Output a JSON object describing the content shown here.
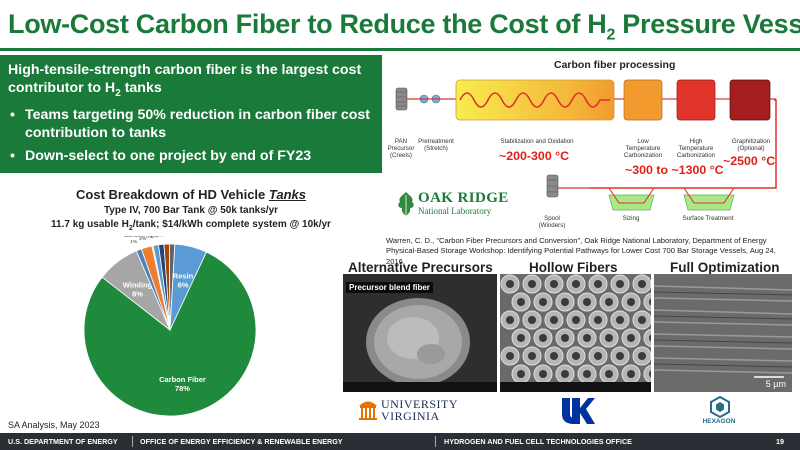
{
  "slide": {
    "title_main": "Low-Cost Carbon Fiber to Reduce the Cost of H",
    "title_sub": "2",
    "title_end": " Pressure Vessels",
    "page_number": "19"
  },
  "summary": {
    "lead_a": "High-tensile-strength carbon fiber is the largest cost contributor to H",
    "lead_sub": "2",
    "lead_b": " tanks",
    "bullets": [
      "Teams targeting 50% reduction in carbon fiber cost contribution to tanks",
      "Down-select to one project by end of FY23"
    ]
  },
  "process": {
    "title": "Carbon fiber processing",
    "stages": {
      "pan": "PAN\nPrecursor\n(Creels)",
      "pretreatment": "Pretreatment\n(Stretch)",
      "stabilization": "Stabilization and Oxidation",
      "low_temp": "Low\nTemperature\nCarbonization",
      "high_temp": "High\nTemperature\nCarbonization",
      "graphitization": "Graphitization\n(Optional)",
      "spool": "Spool\n(Winders)",
      "sizing": "Sizing",
      "surface": "Surface Treatment"
    },
    "temps": {
      "stabilization": "~200-300 °C",
      "carbonization": "~300 to ~1300 °C",
      "graphitization": "~2500 °C"
    },
    "colors": {
      "yellow": "#f6e23a",
      "orange": "#f29a2e",
      "red": "#e0332a",
      "dark_red": "#a51e1e",
      "bath": "#a9e88a"
    }
  },
  "ornl_logo": {
    "line1": "OAK RIDGE",
    "line2": "National Laboratory"
  },
  "citation": "Warren, C. D., \"Carbon Fiber Precursors and Conversion\", Oak Ridge National Laboratory, Department of Energy Physical-Based Storage Workshop: Identifying Potential Pathways for Lower Cost 700 Bar Storage Vessels, Aug 24, 2016.",
  "cost_chart": {
    "title_pre": "Cost Breakdown of HD Vehicle ",
    "title_em": "Tanks",
    "sub1": "Type IV, 700 Bar Tank @ 50k tanks/yr",
    "sub2_a": "11.7 kg usable H",
    "sub2_sub": "2",
    "sub2_b": "/tank; $14/kWh complete system @ 10k/yr"
  },
  "chart_data": {
    "type": "pie",
    "title": "Cost Breakdown of HD Vehicle Tanks",
    "slices": [
      {
        "label": "Carbon Fiber",
        "value": 78,
        "text": "78%",
        "color": "#1f8a3c"
      },
      {
        "label": "Winding",
        "value": 8,
        "text": "8%",
        "color": "#a6a6a6"
      },
      {
        "label": "Tank Boss",
        "value": 1,
        "text": "1%",
        "color": "#4f81bd"
      },
      {
        "label": "Liner",
        "value": 2,
        "text": "2%",
        "color": "#ed7d31"
      },
      {
        "label": "Shoulder Foam",
        "value": 0,
        "text": "0%",
        "color": "#ffc000"
      },
      {
        "label": "Hydro Test",
        "value": 1,
        "text": "1%",
        "color": "#5b9bd5"
      },
      {
        "label": "Helium Leak Test",
        "value": 1,
        "text": "1%",
        "color": "#264478"
      },
      {
        "label": "Full Cure",
        "value": 1,
        "text": "1%",
        "color": "#9e480e"
      },
      {
        "label": "B-Cure",
        "value": 1,
        "text": "1%",
        "color": "#636363"
      },
      {
        "label": "Resin",
        "value": 6,
        "text": "6%",
        "color": "#5b9bd5"
      }
    ]
  },
  "source_note": "SA Analysis, May 2023",
  "research": {
    "precursors": "Alternative Precursors",
    "hollow": "Hollow Fibers",
    "full": "Full Optimization",
    "photo1_label": "Precursor blend fiber",
    "photo3_scale": "5 µm"
  },
  "logos": {
    "uva_line1": "UNIVERSITY",
    "uva_line2": "VIRGINIA",
    "hexagon": "HEXAGON"
  },
  "footer": {
    "doe": "U.S. DEPARTMENT OF ENERGY",
    "office": "OFFICE OF ENERGY EFFICIENCY & RENEWABLE ENERGY",
    "hfto": "HYDROGEN AND FUEL CELL TECHNOLOGIES OFFICE"
  }
}
